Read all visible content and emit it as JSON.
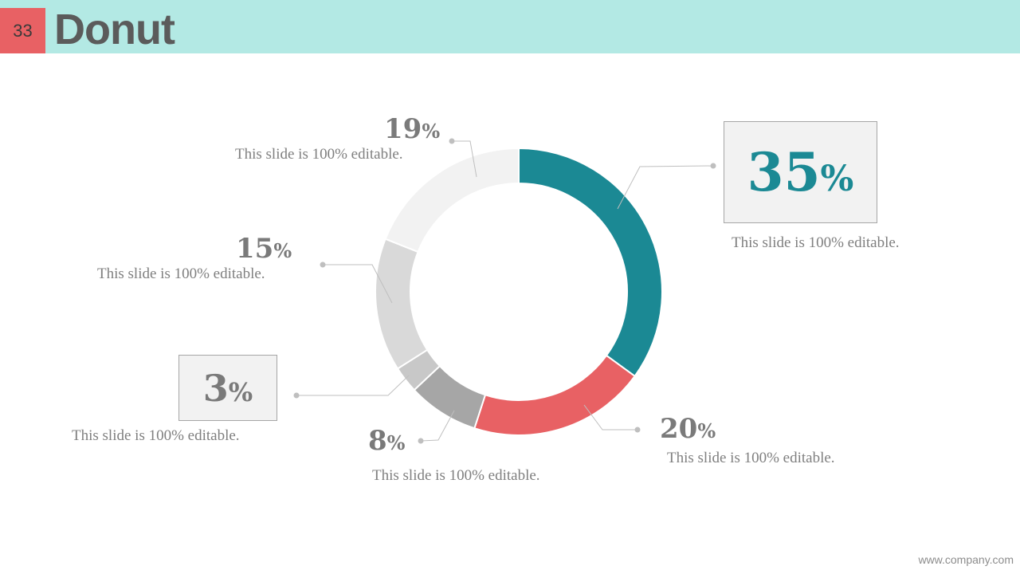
{
  "slide_number": "33",
  "title": "Donut",
  "footer": "www.company.com",
  "colors": {
    "teal": "#1b8994",
    "red": "#e86164",
    "gray": "#a6a6a6",
    "light_gray": "#d9d9d9",
    "lighter_gray": "#f2f2f2",
    "header": "#b3e9e4"
  },
  "chart_data": {
    "type": "pie",
    "donut": true,
    "values": [
      35,
      20,
      8,
      3,
      15,
      19
    ],
    "colors": [
      "#1b8994",
      "#e86164",
      "#a6a6a6",
      "#c8c8c8",
      "#d9d9d9",
      "#f2f2f2"
    ],
    "labels": [
      {
        "value": "35",
        "symbol": "%",
        "description": "This slide is 100% editable."
      },
      {
        "value": "20",
        "symbol": "%",
        "description": "This slide is 100% editable."
      },
      {
        "value": "8",
        "symbol": "%",
        "description": "This slide is 100% editable."
      },
      {
        "value": "3",
        "symbol": "%",
        "description": "This slide is 100% editable."
      },
      {
        "value": "15",
        "symbol": "%",
        "description": "This slide is 100% editable."
      },
      {
        "value": "19",
        "symbol": "%",
        "description": "This slide is 100% editable."
      }
    ]
  }
}
